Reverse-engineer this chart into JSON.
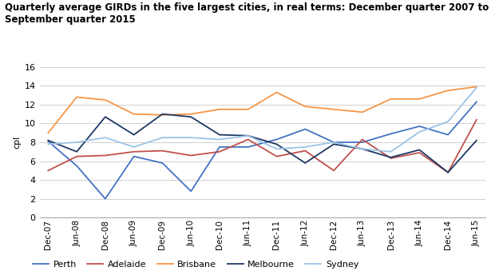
{
  "title_line1": "Quarterly average GIRDs in the five largest cities, in real terms: December quarter 2007 to",
  "title_line2": "September quarter 2015",
  "ylabel": "cpl",
  "x_labels": [
    "Dec-07",
    "Jun-08",
    "Dec-08",
    "Jun-09",
    "Dec-09",
    "Jun-10",
    "Dec-10",
    "Jun-11",
    "Dec-11",
    "Jun-12",
    "Dec-12",
    "Jun-13",
    "Dec-13",
    "Jun-14",
    "Dec-14",
    "Jun-15"
  ],
  "ylim": [
    0,
    16
  ],
  "yticks": [
    0,
    2,
    4,
    6,
    8,
    10,
    12,
    14,
    16
  ],
  "Perth": [
    8.1,
    5.5,
    2.0,
    6.5,
    5.8,
    2.8,
    7.5,
    7.5,
    8.3,
    9.4,
    8.0,
    8.0,
    8.9,
    9.7,
    8.8,
    12.3
  ],
  "Adelaide": [
    5.0,
    6.5,
    6.6,
    7.0,
    7.1,
    6.6,
    7.0,
    8.3,
    6.5,
    7.1,
    5.0,
    8.3,
    6.3,
    6.9,
    4.8,
    10.4
  ],
  "Brisbane": [
    9.0,
    12.8,
    12.5,
    11.0,
    10.9,
    11.0,
    11.5,
    11.5,
    13.3,
    11.8,
    11.5,
    11.2,
    12.6,
    12.6,
    13.5,
    13.9
  ],
  "Melbourne": [
    8.2,
    7.0,
    10.7,
    8.8,
    11.0,
    10.7,
    8.8,
    8.7,
    7.8,
    5.8,
    7.8,
    7.3,
    6.4,
    7.2,
    4.8,
    8.2
  ],
  "Sydney": [
    7.8,
    8.0,
    8.5,
    7.5,
    8.5,
    8.5,
    8.3,
    8.7,
    7.3,
    7.5,
    8.0,
    7.3,
    7.0,
    9.1,
    10.2,
    13.8
  ],
  "colors": {
    "Perth": "#4472C4",
    "Adelaide": "#C0504D",
    "Brisbane": "#F79646",
    "Melbourne": "#1F3864",
    "Sydney": "#9DC3E6"
  },
  "legend_order": [
    "Perth",
    "Adelaide",
    "Brisbane",
    "Melbourne",
    "Sydney"
  ],
  "title_fontsize": 8.5,
  "axis_fontsize": 8,
  "legend_fontsize": 8
}
